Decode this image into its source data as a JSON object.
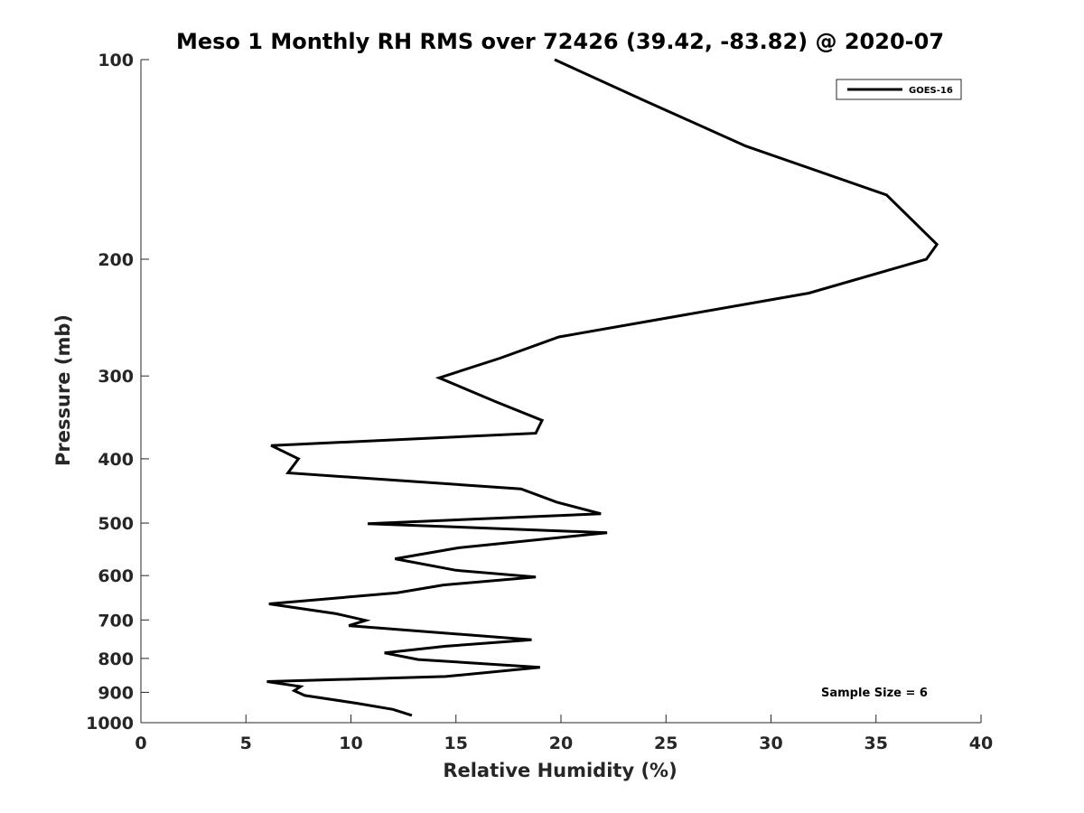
{
  "chart_data": {
    "type": "line",
    "title": "Meso 1 Monthly RH RMS over 72426 (39.42, -83.82) @ 2020-07",
    "xlabel": "Relative Humidity (%)",
    "ylabel": "Pressure (mb)",
    "xlim": [
      0,
      40
    ],
    "ylim": [
      100,
      1000
    ],
    "y_scale": "log",
    "y_reversed": true,
    "x_ticks": [
      0,
      5,
      10,
      15,
      20,
      25,
      30,
      35,
      40
    ],
    "y_ticks": [
      100,
      200,
      300,
      400,
      500,
      600,
      700,
      800,
      900,
      1000
    ],
    "grid": false,
    "legend_position": "top-right",
    "annotation": "Sample Size = 6",
    "series": [
      {
        "name": "GOES-16",
        "color": "#000000",
        "x": [
          19.7,
          23.9,
          28.8,
          35.5,
          37.9,
          37.4,
          31.8,
          19.9,
          17.1,
          14.2,
          16.9,
          19.1,
          18.8,
          6.2,
          7.5,
          7.0,
          18.1,
          19.8,
          21.9,
          10.8,
          22.2,
          15.1,
          12.1,
          15.0,
          18.8,
          14.4,
          12.2,
          6.1,
          9.3,
          10.7,
          9.9,
          18.6,
          14.5,
          11.6,
          13.2,
          19.0,
          14.5,
          6.0,
          7.6,
          7.3,
          7.8,
          10.3,
          12.0,
          12.9
        ],
        "y": [
          100,
          115,
          135,
          160,
          190,
          200,
          225,
          262,
          282,
          302,
          328,
          350,
          366,
          382,
          400,
          420,
          444,
          465,
          484,
          501,
          517,
          545,
          566,
          589,
          603,
          620,
          637,
          662,
          685,
          701,
          714,
          750,
          767,
          785,
          803,
          825,
          852,
          867,
          882,
          895,
          910,
          935,
          955,
          975
        ]
      }
    ]
  }
}
